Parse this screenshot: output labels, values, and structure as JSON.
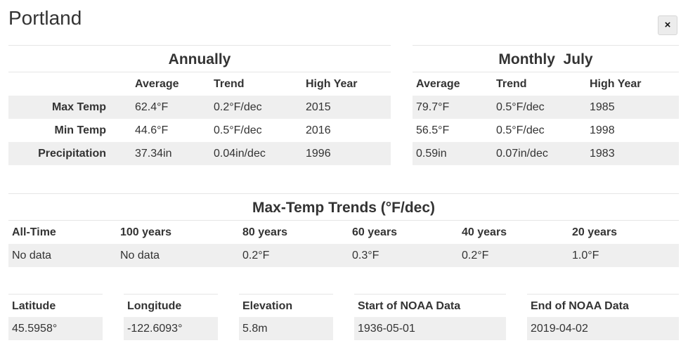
{
  "header": {
    "title": "Portland",
    "close_label": "×"
  },
  "annual": {
    "title": "Annually",
    "columns": [
      "",
      "Average",
      "Trend",
      "High Year"
    ],
    "rows": [
      {
        "label": "Max Temp",
        "average": "62.4°F",
        "trend": "0.2°F/dec",
        "high_year": "2015"
      },
      {
        "label": "Min Temp",
        "average": "44.6°F",
        "trend": "0.5°F/dec",
        "high_year": "2016"
      },
      {
        "label": "Precipitation",
        "average": "37.34in",
        "trend": "0.04in/dec",
        "high_year": "1996"
      }
    ]
  },
  "monthly": {
    "title": "Monthly  July",
    "columns": [
      "Average",
      "Trend",
      "High Year"
    ],
    "rows": [
      {
        "average": "79.7°F",
        "trend": "0.5°F/dec",
        "high_year": "1985"
      },
      {
        "average": "56.5°F",
        "trend": "0.5°F/dec",
        "high_year": "1998"
      },
      {
        "average": "0.59in",
        "trend": "0.07in/dec",
        "high_year": "1983"
      }
    ]
  },
  "trends": {
    "title": "Max-Temp Trends (°F/dec)",
    "columns": [
      "All-Time",
      "100 years",
      "80 years",
      "60 years",
      "40 years",
      "20 years"
    ],
    "values": [
      "No data",
      "No data",
      "0.2°F",
      "0.3°F",
      "0.2°F",
      "1.0°F"
    ]
  },
  "location": {
    "latitude_label": "Latitude",
    "latitude": "45.5958°",
    "longitude_label": "Longitude",
    "longitude": "-122.6093°",
    "elevation_label": "Elevation",
    "elevation": "5.8m",
    "start_label": "Start of NOAA Data",
    "start": "1936-05-01",
    "end_label": "End of NOAA Data",
    "end": "2019-04-02"
  }
}
